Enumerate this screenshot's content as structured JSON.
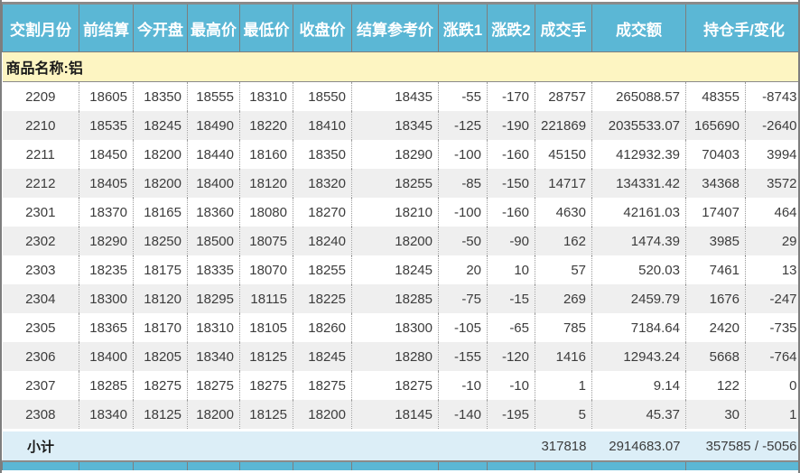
{
  "header": {
    "labels": [
      "交割月份",
      "前结算",
      "今开盘",
      "最高价",
      "最低价",
      "收盘价",
      "结算参考价",
      "涨跌1",
      "涨跌2",
      "成交手",
      "成交额",
      "持仓手/变化"
    ]
  },
  "section": {
    "label": "商品名称:铝"
  },
  "column_keys": [
    "month",
    "prev_settle",
    "open",
    "high",
    "low",
    "close",
    "settle_ref",
    "change1",
    "change2",
    "volume",
    "turnover",
    "open_interest",
    "oi_change"
  ],
  "rows": [
    [
      "2209",
      "18605",
      "18350",
      "18555",
      "18310",
      "18550",
      "18435",
      "-55",
      "-170",
      "28757",
      "265088.57",
      "48355",
      "-8743"
    ],
    [
      "2210",
      "18535",
      "18245",
      "18490",
      "18220",
      "18410",
      "18345",
      "-125",
      "-190",
      "221869",
      "2035533.07",
      "165690",
      "-2640"
    ],
    [
      "2211",
      "18450",
      "18200",
      "18440",
      "18160",
      "18350",
      "18290",
      "-100",
      "-160",
      "45150",
      "412932.39",
      "70403",
      "3994"
    ],
    [
      "2212",
      "18405",
      "18200",
      "18400",
      "18120",
      "18320",
      "18255",
      "-85",
      "-150",
      "14717",
      "134331.42",
      "34368",
      "3572"
    ],
    [
      "2301",
      "18370",
      "18165",
      "18360",
      "18080",
      "18270",
      "18210",
      "-100",
      "-160",
      "4630",
      "42161.03",
      "17407",
      "464"
    ],
    [
      "2302",
      "18290",
      "18250",
      "18500",
      "18075",
      "18240",
      "18200",
      "-50",
      "-90",
      "162",
      "1474.39",
      "3985",
      "29"
    ],
    [
      "2303",
      "18235",
      "18175",
      "18335",
      "18070",
      "18255",
      "18245",
      "20",
      "10",
      "57",
      "520.03",
      "7461",
      "13"
    ],
    [
      "2304",
      "18300",
      "18120",
      "18295",
      "18115",
      "18225",
      "18285",
      "-75",
      "-15",
      "269",
      "2459.79",
      "1676",
      "-247"
    ],
    [
      "2305",
      "18365",
      "18170",
      "18310",
      "18105",
      "18260",
      "18300",
      "-105",
      "-65",
      "785",
      "7184.64",
      "2420",
      "-735"
    ],
    [
      "2306",
      "18400",
      "18205",
      "18340",
      "18125",
      "18245",
      "18280",
      "-155",
      "-120",
      "1416",
      "12943.24",
      "5668",
      "-764"
    ],
    [
      "2307",
      "18285",
      "18275",
      "18275",
      "18275",
      "18275",
      "18275",
      "-10",
      "-10",
      "1",
      "9.14",
      "122",
      "0"
    ],
    [
      "2308",
      "18340",
      "18125",
      "18200",
      "18125",
      "18200",
      "18145",
      "-140",
      "-195",
      "5",
      "45.37",
      "30",
      "1"
    ]
  ],
  "subtotal": {
    "label": "小计",
    "volume_total": "317818",
    "turnover_total": "2914683.07",
    "open_interest_total": "357585 / -5056"
  },
  "colors": {
    "header_bg": "#5bb7d5",
    "section_bg": "#fdf5c2",
    "row_alt_bg": "#efefef",
    "subtotal_bg": "#dceef7",
    "border": "#7e7e7e",
    "text": "#3c3c3c",
    "header_text": "#ffffff"
  }
}
